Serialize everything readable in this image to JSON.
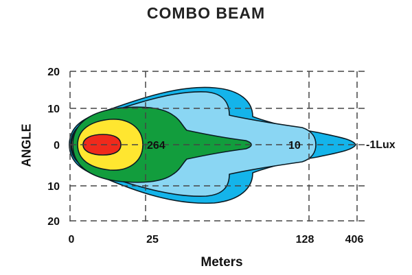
{
  "chart_data": {
    "type": "area",
    "title": "COMBO  BEAM",
    "xlabel": "Meters",
    "ylabel": "ANGLE",
    "x_ticks": [
      "0",
      "25",
      "128",
      "406"
    ],
    "y_ticks": [
      "20",
      "10",
      "0",
      "10",
      "20"
    ],
    "grid": true,
    "grid_style": "dashed",
    "contours": [
      {
        "label": "",
        "color": "#14b4ea"
      },
      {
        "label": "",
        "color": "#8ad6f3"
      },
      {
        "label": "",
        "color": "#d9c98a"
      },
      {
        "label": "",
        "color": "#129d3d"
      },
      {
        "label": "",
        "color": "#ffe630"
      },
      {
        "label": "",
        "color": "#ef2a1c"
      }
    ],
    "annotations": [
      {
        "text": "264",
        "x": "25",
        "y": 0
      },
      {
        "text": "10",
        "x": "128",
        "y": 0
      },
      {
        "text": "-1Lux",
        "x": "406",
        "y": 0
      }
    ]
  }
}
